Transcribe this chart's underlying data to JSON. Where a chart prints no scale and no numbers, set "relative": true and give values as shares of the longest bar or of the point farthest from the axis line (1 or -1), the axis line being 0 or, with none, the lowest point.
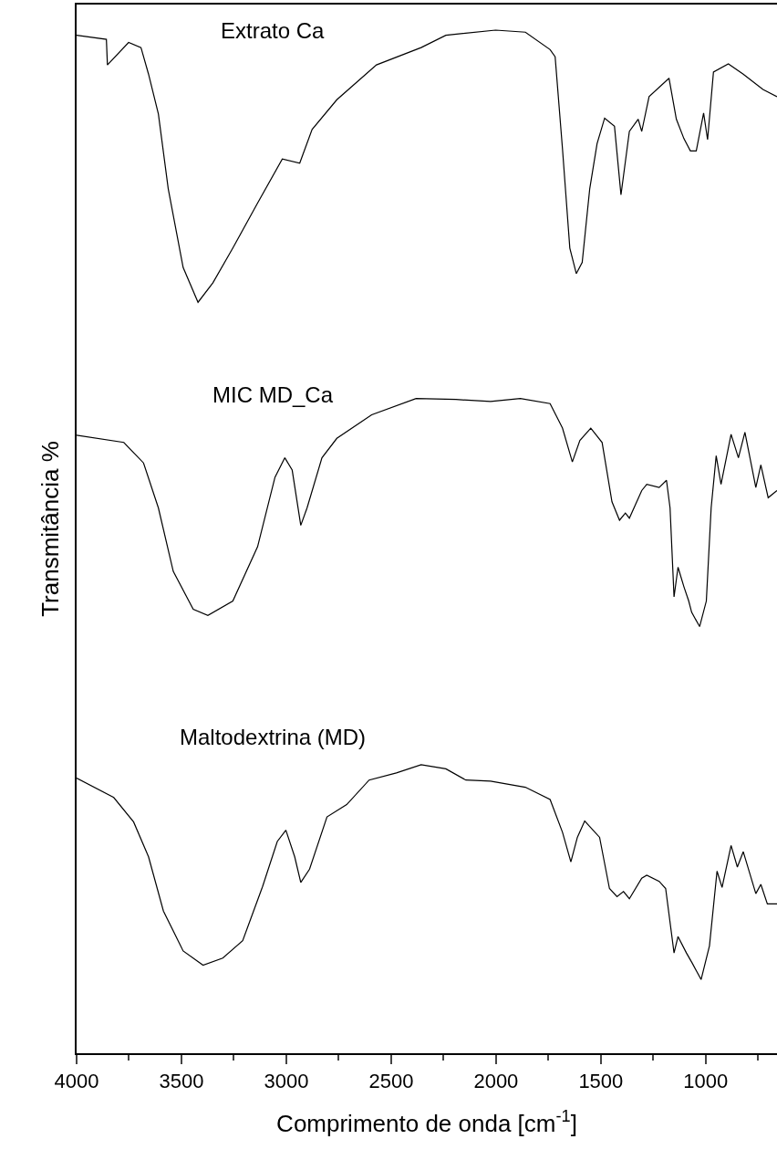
{
  "chart_data": {
    "type": "line",
    "relative": true,
    "xlabel": "Comprimento de onda [cm$^{-1}$]",
    "ylabel": "Transmitância %",
    "xlim": [
      4000,
      660
    ],
    "xticks": [
      4000,
      3500,
      3000,
      2500,
      2000,
      1500,
      1000
    ],
    "grid": false,
    "legend": false,
    "marker": "none",
    "line_style": "solid",
    "series": [
      {
        "name": "Extrato Ca",
        "color": "#000000",
        "x": [
          4000,
          3858,
          3853,
          3752,
          3693,
          3657,
          3610,
          3563,
          3492,
          3421,
          3350,
          3255,
          3137,
          3019,
          2936,
          2877,
          2759,
          2570,
          2357,
          2239,
          2002,
          1860,
          1742,
          1718,
          1683,
          1648,
          1617,
          1589,
          1553,
          1518,
          1482,
          1435,
          1404,
          1364,
          1322,
          1305,
          1270,
          1175,
          1140,
          1104,
          1073,
          1045,
          1010,
          991,
          963,
          892,
          821,
          727,
          660
        ],
        "values": [
          0.995,
          0.991,
          0.966,
          0.988,
          0.983,
          0.957,
          0.918,
          0.845,
          0.768,
          0.734,
          0.753,
          0.787,
          0.831,
          0.874,
          0.87,
          0.903,
          0.932,
          0.966,
          0.983,
          0.995,
          1.0,
          0.998,
          0.981,
          0.974,
          0.884,
          0.787,
          0.762,
          0.773,
          0.845,
          0.889,
          0.914,
          0.906,
          0.839,
          0.901,
          0.913,
          0.901,
          0.935,
          0.953,
          0.913,
          0.894,
          0.882,
          0.882,
          0.919,
          0.893,
          0.959,
          0.967,
          0.957,
          0.942,
          0.935
        ]
      },
      {
        "name": "MIC MD_Ca",
        "color": "#000000",
        "x": [
          4000,
          3775,
          3681,
          3610,
          3539,
          3444,
          3374,
          3255,
          3137,
          3054,
          3007,
          2972,
          2931,
          2901,
          2830,
          2759,
          2593,
          2381,
          2191,
          2026,
          1884,
          1742,
          1683,
          1636,
          1600,
          1548,
          1494,
          1447,
          1411,
          1383,
          1364,
          1305,
          1281,
          1222,
          1187,
          1170,
          1151,
          1132,
          1104,
          1081,
          1067,
          1029,
          997,
          974,
          950,
          927,
          879,
          844,
          813,
          761,
          737,
          702,
          660
        ],
        "values": [
          0.604,
          0.597,
          0.577,
          0.533,
          0.471,
          0.434,
          0.428,
          0.442,
          0.495,
          0.563,
          0.582,
          0.57,
          0.516,
          0.533,
          0.582,
          0.601,
          0.624,
          0.64,
          0.639,
          0.637,
          0.64,
          0.635,
          0.611,
          0.578,
          0.599,
          0.611,
          0.597,
          0.539,
          0.521,
          0.528,
          0.523,
          0.55,
          0.556,
          0.553,
          0.56,
          0.533,
          0.446,
          0.475,
          0.456,
          0.442,
          0.431,
          0.417,
          0.442,
          0.533,
          0.584,
          0.556,
          0.605,
          0.582,
          0.607,
          0.553,
          0.575,
          0.543,
          0.55
        ]
      },
      {
        "name": "Maltodextrina (MD)",
        "color": "#000000",
        "x": [
          4000,
          3823,
          3728,
          3657,
          3586,
          3492,
          3397,
          3303,
          3208,
          3113,
          3043,
          3002,
          2960,
          2931,
          2889,
          2806,
          2712,
          2605,
          2475,
          2357,
          2239,
          2144,
          2026,
          1860,
          1742,
          1683,
          1643,
          1612,
          1577,
          1506,
          1459,
          1423,
          1392,
          1364,
          1305,
          1281,
          1222,
          1191,
          1151,
          1132,
          1092,
          1064,
          1022,
          982,
          946,
          922,
          879,
          849,
          821,
          761,
          737,
          706,
          660
        ],
        "values": [
          0.269,
          0.25,
          0.226,
          0.192,
          0.139,
          0.1,
          0.086,
          0.093,
          0.11,
          0.163,
          0.207,
          0.218,
          0.192,
          0.167,
          0.18,
          0.231,
          0.243,
          0.267,
          0.274,
          0.282,
          0.278,
          0.267,
          0.266,
          0.26,
          0.248,
          0.216,
          0.187,
          0.211,
          0.227,
          0.211,
          0.161,
          0.153,
          0.158,
          0.151,
          0.171,
          0.174,
          0.168,
          0.161,
          0.098,
          0.114,
          0.098,
          0.088,
          0.072,
          0.105,
          0.178,
          0.162,
          0.203,
          0.182,
          0.197,
          0.156,
          0.165,
          0.146,
          0.146
        ]
      }
    ]
  }
}
